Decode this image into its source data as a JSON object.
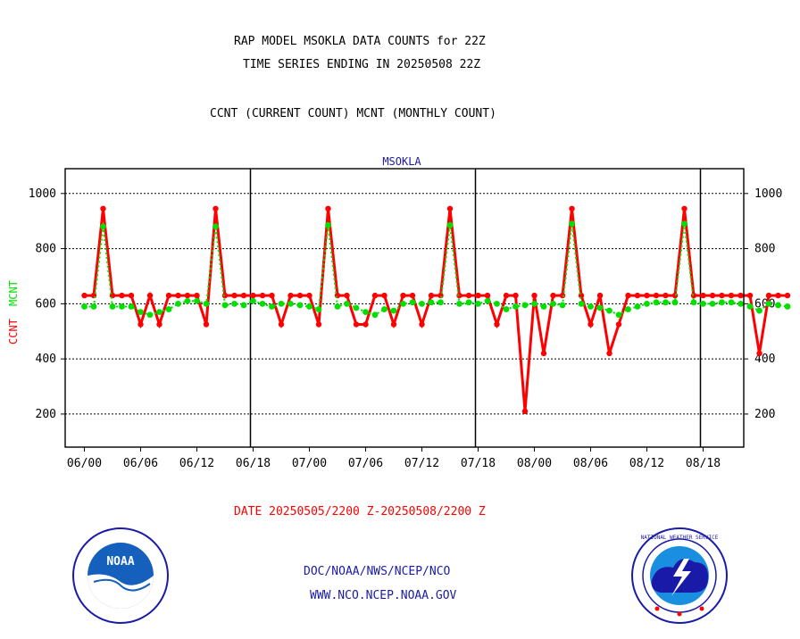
{
  "title_line1": "RAP MODEL MSOKLA DATA COUNTS for 22Z",
  "title_line2": "TIME SERIES ENDING IN 20250508 22Z",
  "subtitle": "CCNT (CURRENT COUNT) MCNT (MONTHLY COUNT)",
  "date_range": "DATE 20250505/2200 Z-20250508/2200 Z",
  "footer_line1": "DOC/NOAA/NWS/NCEP/NCO",
  "footer_line2": "WWW.NCO.NCEP.NOAA.GOV",
  "logos": {
    "left": "NOAA",
    "right": "NATIONAL WEATHER SERVICE"
  },
  "colors": {
    "ccnt": "#ff0000",
    "mcnt": "#00e000",
    "title_text": "#000000",
    "date_text": "#ff0000",
    "footer_text": "#1a1aa8",
    "station_label": "#1a1aa8"
  },
  "chart_data": {
    "type": "line",
    "title": "MSOKLA",
    "ylabel_left": [
      "CCNT",
      "MCNT"
    ],
    "ylim": [
      80,
      1090
    ],
    "yticks": [
      200,
      400,
      600,
      800,
      1000
    ],
    "xticks": [
      "06/00",
      "06/06",
      "06/12",
      "06/18",
      "07/00",
      "07/06",
      "07/12",
      "07/18",
      "08/00",
      "08/06",
      "08/12",
      "08/18"
    ],
    "day_separators_after_index": [
      18,
      42,
      66
    ],
    "grid": true,
    "series": [
      {
        "name": "CCNT",
        "style": "line-with-markers",
        "values": [
          630,
          630,
          945,
          630,
          630,
          630,
          525,
          630,
          525,
          630,
          630,
          630,
          630,
          525,
          945,
          630,
          630,
          630,
          630,
          630,
          630,
          525,
          630,
          630,
          630,
          525,
          945,
          630,
          630,
          525,
          525,
          630,
          630,
          525,
          630,
          630,
          525,
          630,
          630,
          945,
          630,
          630,
          630,
          630,
          525,
          630,
          630,
          210,
          630,
          420,
          630,
          630,
          945,
          630,
          525,
          630,
          420,
          525,
          630,
          630,
          630,
          630,
          630,
          630,
          945,
          630,
          630,
          630,
          630,
          630,
          630,
          630,
          420,
          630,
          630,
          630
        ]
      },
      {
        "name": "MCNT",
        "style": "dotted-markers",
        "values": [
          590,
          590,
          880,
          590,
          590,
          590,
          570,
          560,
          570,
          580,
          600,
          610,
          610,
          600,
          880,
          595,
          600,
          595,
          610,
          600,
          590,
          600,
          600,
          595,
          590,
          580,
          885,
          590,
          600,
          585,
          570,
          560,
          580,
          575,
          600,
          605,
          600,
          605,
          605,
          885,
          600,
          605,
          600,
          610,
          600,
          580,
          590,
          595,
          600,
          590,
          600,
          595,
          890,
          600,
          590,
          585,
          575,
          560,
          580,
          590,
          600,
          605,
          605,
          605,
          890,
          605,
          600,
          600,
          605,
          605,
          600,
          590,
          575,
          600,
          595,
          590
        ]
      }
    ]
  }
}
